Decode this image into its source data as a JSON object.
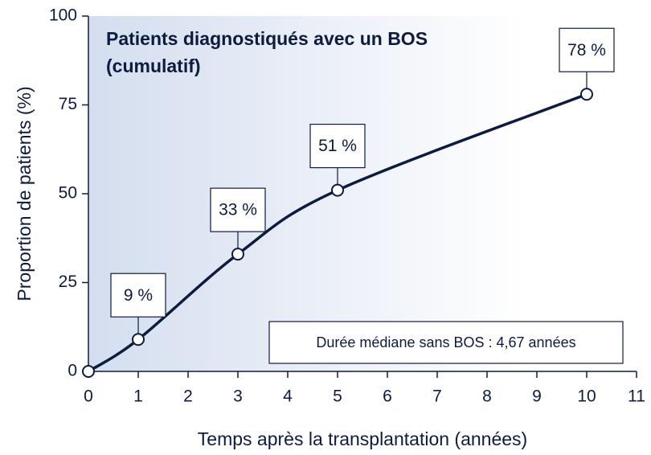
{
  "chart_data": {
    "type": "line",
    "title": [
      "Patients diagnostiqués avec un BOS",
      "(cumulatif)"
    ],
    "xlabel": "Temps après la transplantation (années)",
    "ylabel": "Proportion de patients (%)",
    "x": [
      0,
      1,
      3,
      5,
      10
    ],
    "values": [
      0,
      9,
      33,
      51,
      78
    ],
    "value_labels": [
      null,
      "9 %",
      "33 %",
      "51 %",
      "78 %"
    ],
    "color": "#0d1b3e",
    "xlim": [
      0,
      11
    ],
    "xticks": [
      0,
      1,
      2,
      3,
      4,
      5,
      6,
      7,
      8,
      9,
      10,
      11
    ],
    "ylim": [
      0,
      100
    ],
    "yticks": [
      0,
      25,
      50,
      75,
      100
    ],
    "annotation": "Durée médiane sans BOS : 4,67 années"
  }
}
